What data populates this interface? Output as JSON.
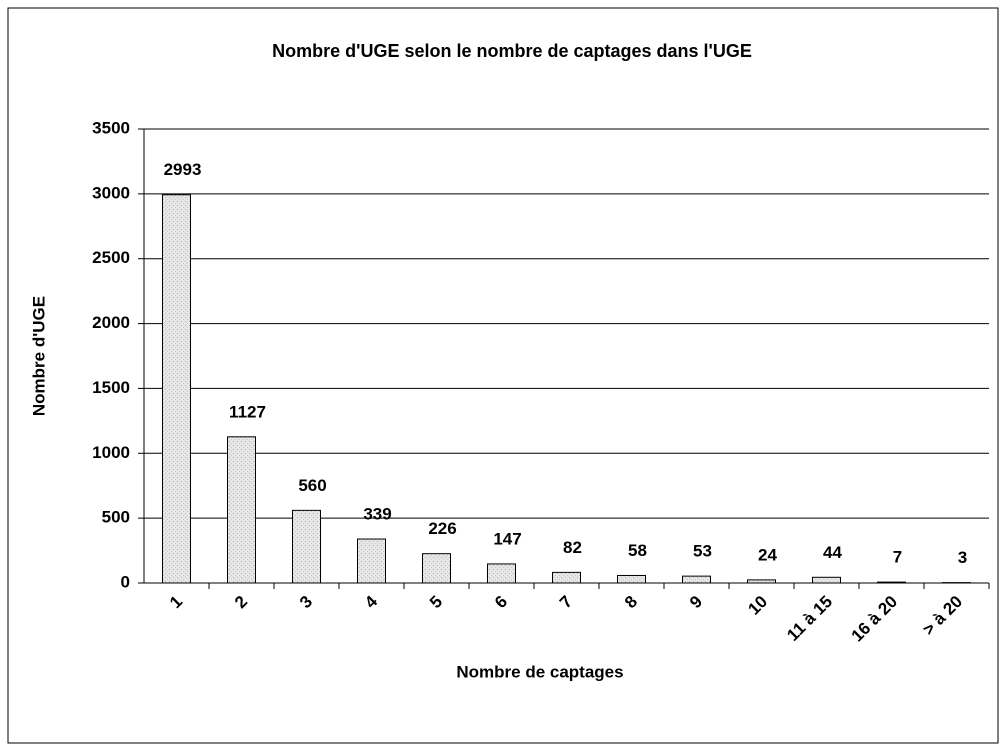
{
  "chart_data": {
    "type": "bar",
    "title": "Nombre d'UGE selon le nombre de captages dans l'UGE",
    "x_label": "Nombre de captages",
    "y_label": "Nombre d'UGE",
    "categories": [
      "1",
      "2",
      "3",
      "4",
      "5",
      "6",
      "7",
      "8",
      "9",
      "10",
      "11 à 15",
      "16 à 20",
      "> à 20"
    ],
    "values": [
      2993,
      1127,
      560,
      339,
      226,
      147,
      82,
      58,
      53,
      24,
      44,
      7,
      3
    ],
    "color": "#e3e3e3",
    "ylim": [
      0,
      3500
    ],
    "yticks": [
      0,
      500,
      1000,
      1500,
      2000,
      2500,
      3000,
      3500
    ],
    "grid": true
  }
}
